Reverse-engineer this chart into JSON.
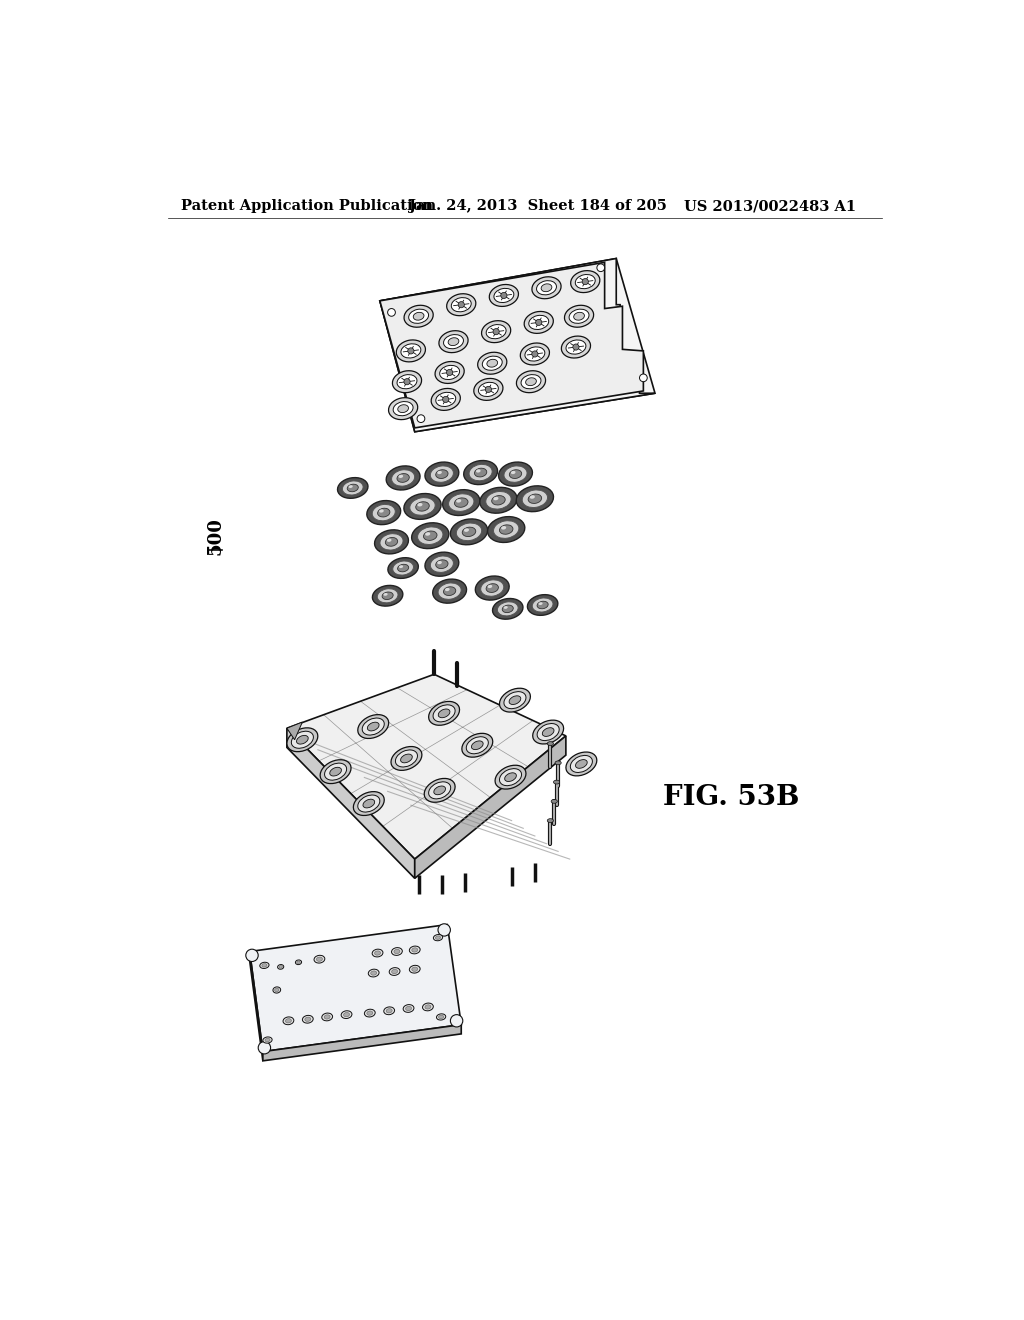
{
  "header_left": "Patent Application Publication",
  "header_middle": "Jan. 24, 2013  Sheet 184 of 205",
  "header_right": "US 2013/0022483 A1",
  "fig_label": "FIG. 53B",
  "ref_number": "500",
  "background_color": "#ffffff",
  "text_color": "#000000",
  "header_fontsize": 10.5,
  "fig_label_fontsize": 20,
  "ref_number_fontsize": 13,
  "line_color": "#111111",
  "fill_light": "#f0f0f0",
  "fill_white": "#ffffff"
}
